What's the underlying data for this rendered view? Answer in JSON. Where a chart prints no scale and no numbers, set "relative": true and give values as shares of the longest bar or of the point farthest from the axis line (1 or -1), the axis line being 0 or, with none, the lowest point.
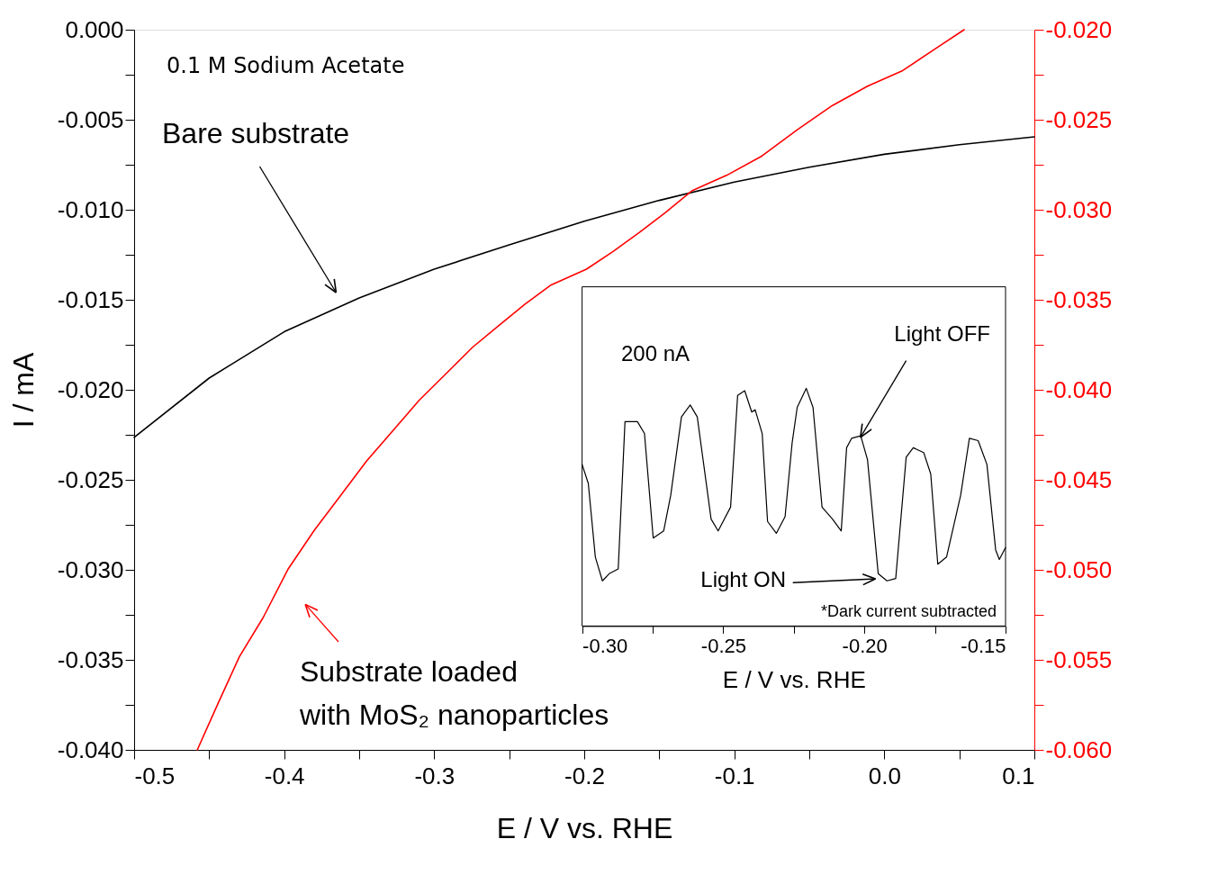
{
  "chart_data": [
    {
      "type": "line",
      "xlabel": "E / V vs. RHE",
      "ylabel": "I / mA",
      "xlim": [
        -0.5,
        0.1
      ],
      "xticks": [
        -0.5,
        {
          "value": -0.45,
          "label": null
        },
        -0.4,
        {
          "value": -0.35,
          "label": null
        },
        -0.3,
        {
          "value": -0.25,
          "label": null
        },
        -0.2,
        {
          "value": -0.15,
          "label": null
        },
        -0.1,
        {
          "value": -0.05,
          "label": null
        },
        {
          "value": 0,
          "label": "0.0"
        },
        {
          "value": 0.05,
          "label": null
        },
        0.1
      ],
      "ylim": [
        -0.04,
        0.0
      ],
      "yticks": [
        {
          "value": 0,
          "label": "0.000"
        },
        {
          "value": -0.0025,
          "label": null
        },
        {
          "value": -0.005,
          "label": "-0.005"
        },
        {
          "value": -0.0075,
          "label": null
        },
        {
          "value": -0.01,
          "label": "-0.010"
        },
        {
          "value": -0.0125,
          "label": null
        },
        {
          "value": -0.015,
          "label": "-0.015"
        },
        {
          "value": -0.0175,
          "label": null
        },
        {
          "value": -0.02,
          "label": "-0.020"
        },
        {
          "value": -0.0225,
          "label": null
        },
        {
          "value": -0.025,
          "label": "-0.025"
        },
        {
          "value": -0.0275,
          "label": null
        },
        {
          "value": -0.03,
          "label": "-0.030"
        },
        {
          "value": -0.0325,
          "label": null
        },
        {
          "value": -0.035,
          "label": "-0.035"
        },
        {
          "value": -0.0375,
          "label": null
        },
        {
          "value": -0.04,
          "label": "-0.040"
        }
      ],
      "y2lim": [
        -0.06,
        -0.02
      ],
      "y2ticks": [
        {
          "value": -0.02,
          "label": "-0.020"
        },
        {
          "value": -0.0225,
          "label": null
        },
        {
          "value": -0.025,
          "label": "-0.025"
        },
        {
          "value": -0.0275,
          "label": null
        },
        {
          "value": -0.03,
          "label": "-0.030"
        },
        {
          "value": -0.0325,
          "label": null
        },
        {
          "value": -0.035,
          "label": "-0.035"
        },
        {
          "value": -0.0375,
          "label": null
        },
        {
          "value": -0.04,
          "label": "-0.040"
        },
        {
          "value": -0.0425,
          "label": null
        },
        {
          "value": -0.045,
          "label": "-0.045"
        },
        {
          "value": -0.0475,
          "label": null
        },
        {
          "value": -0.05,
          "label": "-0.050"
        },
        {
          "value": -0.0525,
          "label": null
        },
        {
          "value": -0.055,
          "label": "-0.055"
        },
        {
          "value": -0.0575,
          "label": null
        },
        {
          "value": -0.06,
          "label": "-0.060"
        }
      ],
      "grid": false,
      "series": [
        {
          "color": "#000000",
          "x": [
            -0.5,
            -0.45,
            -0.4,
            -0.35,
            -0.3,
            -0.25,
            -0.2,
            -0.15,
            -0.1,
            -0.05,
            0.0,
            0.05,
            0.1
          ],
          "values": [
            -0.02264,
            -0.01935,
            -0.01678,
            -0.0149,
            -0.0133,
            -0.01195,
            -0.01064,
            -0.00948,
            -0.00846,
            -0.00764,
            -0.00692,
            -0.00639,
            -0.00595
          ]
        },
        {
          "color": "#ff0000",
          "axis": "y2",
          "x": [
            -0.4579,
            -0.4444,
            -0.4298,
            -0.414,
            -0.3976,
            -0.38,
            -0.3624,
            -0.3449,
            -0.3273,
            -0.3098,
            -0.2922,
            -0.2746,
            -0.2571,
            -0.2395,
            -0.222,
            -0.1985,
            -0.181,
            -0.1634,
            -0.1459,
            -0.1283,
            -0.1049,
            -0.0815,
            -0.058,
            -0.0346,
            -0.0112,
            0.0122,
            0.0356,
            0.0532
          ],
          "values": [
            -0.06,
            -0.05748,
            -0.05482,
            -0.05265,
            -0.04999,
            -0.04781,
            -0.04588,
            -0.04394,
            -0.04225,
            -0.04056,
            -0.03911,
            -0.03765,
            -0.03644,
            -0.03524,
            -0.03417,
            -0.0333,
            -0.03233,
            -0.03127,
            -0.03016,
            -0.02895,
            -0.02808,
            -0.02701,
            -0.02556,
            -0.02421,
            -0.02314,
            -0.02227,
            -0.02097,
            -0.02
          ]
        }
      ],
      "annotations": [
        "0.1 M Sodium Acetate",
        "Bare substrate",
        "Substrate loaded\nwith MoS₂ nanoparticles"
      ]
    },
    {
      "type": "line",
      "relative": true,
      "xlabel": "E / V vs. RHE",
      "xlim": [
        -0.3,
        -0.15
      ],
      "xticks": [
        {
          "value": -0.3,
          "label": "-0.30"
        },
        {
          "value": -0.275,
          "label": null
        },
        {
          "value": -0.25,
          "label": "-0.25"
        },
        {
          "value": -0.225,
          "label": null
        },
        {
          "value": -0.2,
          "label": "-0.20"
        },
        {
          "value": -0.175,
          "label": null
        },
        {
          "value": -0.15,
          "label": "-0.15"
        }
      ],
      "series": [
        {
          "color": "#000000",
          "x": [
            -0.3,
            -0.2978,
            -0.2953,
            -0.2928,
            -0.2904,
            -0.2872,
            -0.2848,
            -0.2804,
            -0.2779,
            -0.2748,
            -0.2711,
            -0.2686,
            -0.2648,
            -0.2617,
            -0.2592,
            -0.2543,
            -0.2518,
            -0.2474,
            -0.2449,
            -0.2424,
            -0.2399,
            -0.2387,
            -0.2362,
            -0.2343,
            -0.2312,
            -0.2281,
            -0.2256,
            -0.2238,
            -0.2206,
            -0.2182,
            -0.215,
            -0.2113,
            -0.2082,
            -0.2063,
            -0.2045,
            -0.2013,
            -0.1989,
            -0.1951,
            -0.192,
            -0.1889,
            -0.1852,
            -0.1827,
            -0.179,
            -0.1765,
            -0.174,
            -0.1709,
            -0.1659,
            -0.1628,
            -0.1597,
            -0.1566,
            -0.1535,
            -0.1522,
            -0.15
          ],
          "values": [
            0.68,
            0.6,
            0.29,
            0.19,
            0.22,
            0.24,
            0.86,
            0.86,
            0.81,
            0.37,
            0.4,
            0.55,
            0.88,
            0.93,
            0.88,
            0.45,
            0.4,
            0.5,
            0.97,
            0.99,
            0.9,
            0.91,
            0.81,
            0.44,
            0.39,
            0.46,
            0.77,
            0.92,
            1.0,
            0.92,
            0.5,
            0.45,
            0.4,
            0.75,
            0.79,
            0.8,
            0.7,
            0.22,
            0.19,
            0.2,
            0.71,
            0.75,
            0.73,
            0.64,
            0.26,
            0.29,
            0.55,
            0.79,
            0.78,
            0.68,
            0.32,
            0.28,
            0.33
          ]
        }
      ],
      "annotations": [
        "200 nA",
        "Light OFF",
        "Light ON",
        "*Dark current subtracted"
      ]
    }
  ]
}
